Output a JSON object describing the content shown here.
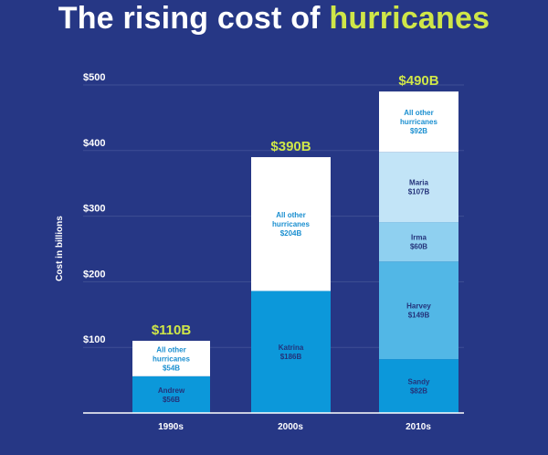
{
  "title": {
    "prefix": "The rising cost of",
    "highlight": "hurricanes"
  },
  "colors": {
    "background": "#263785",
    "accent": "#cfe648",
    "other": "#ffffff",
    "pale": "#c2e4f7",
    "light": "#8fd0f0",
    "mid": "#52b7e6",
    "dark": "#0c98da"
  },
  "chart_data": {
    "type": "bar",
    "stacked": true,
    "title": "The rising cost of hurricanes",
    "ylabel": "Cost in billions",
    "xlabel": "",
    "ylim": [
      0,
      500
    ],
    "yticks": [
      {
        "value": 100,
        "label": "$100"
      },
      {
        "value": 200,
        "label": "$200"
      },
      {
        "value": 300,
        "label": "$300"
      },
      {
        "value": 400,
        "label": "$400"
      },
      {
        "value": 500,
        "label": "$500"
      }
    ],
    "categories": [
      "1990s",
      "2000s",
      "2010s"
    ],
    "bars": [
      {
        "category": "1990s",
        "total": 110,
        "total_label": "$110B",
        "segments": [
          {
            "name": "Andrew",
            "value": 56,
            "value_label": "$56B",
            "color": "#0c98da",
            "text": "#24337a"
          },
          {
            "name": "All other hurricanes",
            "name_lines": [
              "All other",
              "hurricanes"
            ],
            "value": 54,
            "value_label": "$54B",
            "color": "#ffffff",
            "text": "#1a8fd0"
          }
        ]
      },
      {
        "category": "2000s",
        "total": 390,
        "total_label": "$390B",
        "segments": [
          {
            "name": "Katrina",
            "value": 186,
            "value_label": "$186B",
            "color": "#0c98da",
            "text": "#24337a"
          },
          {
            "name": "All other hurricanes",
            "name_lines": [
              "All other",
              "hurricanes"
            ],
            "value": 204,
            "value_label": "$204B",
            "color": "#ffffff",
            "text": "#1a8fd0"
          }
        ]
      },
      {
        "category": "2010s",
        "total": 490,
        "total_label": "$490B",
        "segments": [
          {
            "name": "Sandy",
            "value": 82,
            "value_label": "$82B",
            "color": "#0c98da",
            "text": "#24337a"
          },
          {
            "name": "Harvey",
            "value": 149,
            "value_label": "$149B",
            "color": "#52b7e6",
            "text": "#24337a"
          },
          {
            "name": "Irma",
            "value": 60,
            "value_label": "$60B",
            "color": "#8fd0f0",
            "text": "#24337a"
          },
          {
            "name": "Maria",
            "value": 107,
            "value_label": "$107B",
            "color": "#c2e4f7",
            "text": "#24337a"
          },
          {
            "name": "All other hurricanes",
            "name_lines": [
              "All other",
              "hurricanes"
            ],
            "value": 92,
            "value_label": "$92B",
            "color": "#ffffff",
            "text": "#1a8fd0"
          }
        ]
      }
    ]
  }
}
